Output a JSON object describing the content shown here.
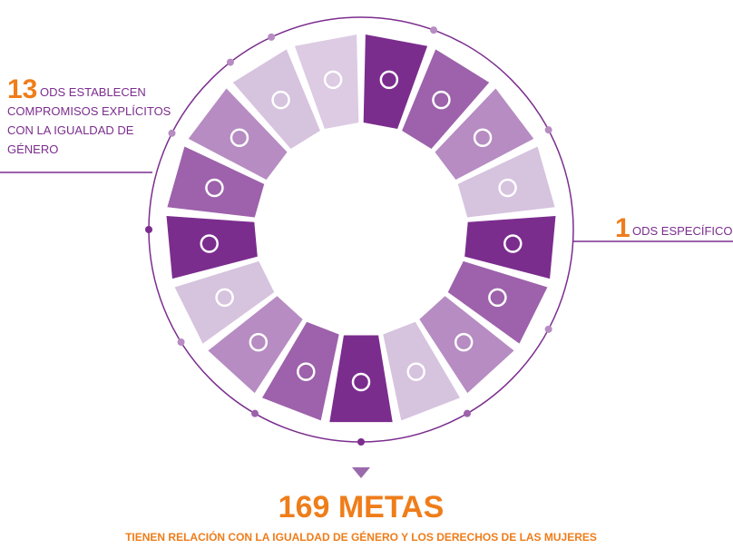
{
  "left_callout": {
    "number": "13",
    "lines": [
      "ODS ESTABLECEN",
      "COMPROMISOS EXPLÍCITOS",
      "CON LA IGUALDAD DE",
      "GÉNERO"
    ]
  },
  "right_callout": {
    "number": "1",
    "text": "ODS ESPECÍFICO"
  },
  "footer": {
    "title": "169 METAS",
    "subtitle": "TIENEN RELACIÓN CON LA IGUALDAD DE GÉNERO Y LOS DERECHOS DE LAS MUJERES"
  }
}
